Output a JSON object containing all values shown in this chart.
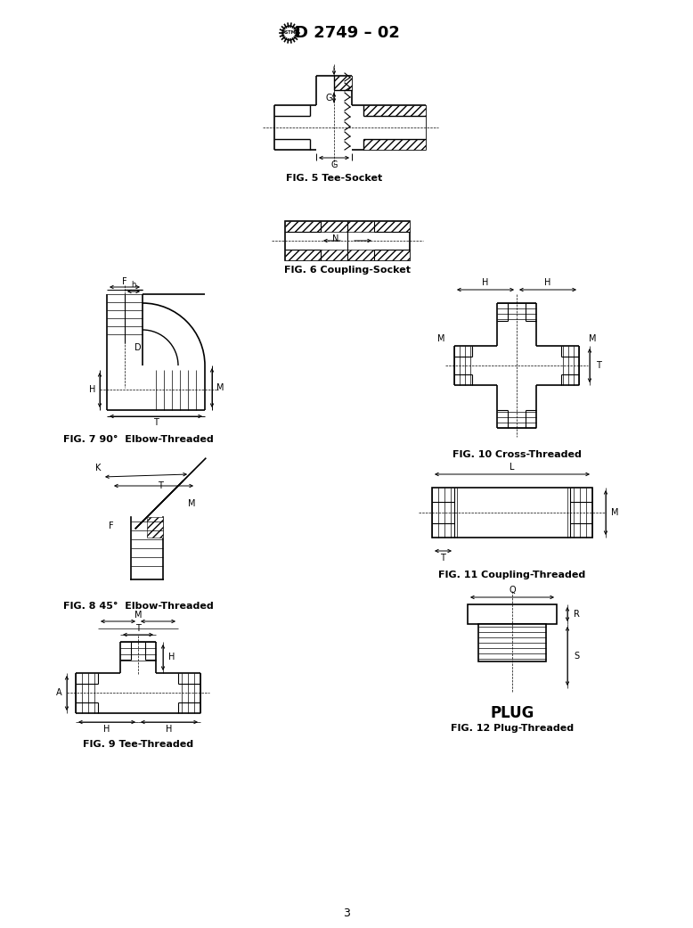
{
  "title": "D 2749 – 02",
  "page_number": "3",
  "bg_color": "#ffffff",
  "fig_labels": [
    "FIG. 5 Tee-Socket",
    "FIG. 6 Coupling-Socket",
    "FIG. 7 90°  Elbow-Threaded",
    "FIG. 8 45°  Elbow-Threaded",
    "FIG. 9 Tee-Threaded",
    "FIG. 10 Cross-Threaded",
    "FIG. 11 Coupling-Threaded",
    "FIG. 12 Plug-Threaded"
  ],
  "plug_label": "PLUG"
}
